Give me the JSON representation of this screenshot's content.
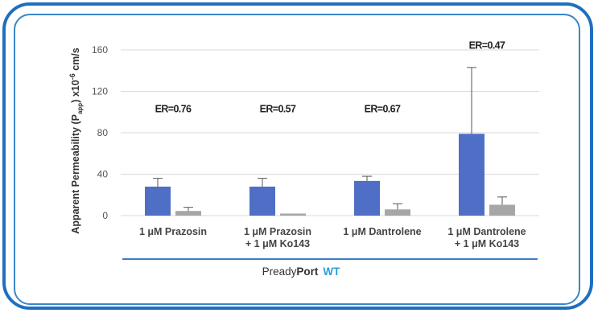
{
  "chart_data": {
    "type": "bar",
    "ylabel": "Apparent Permeability (P_app) x10⁻⁶ cm/s",
    "ylabel_parts": {
      "pre": "Apparent Permeability (P",
      "sub": "app",
      "mid": ") x10",
      "sup": "-6",
      "post": " cm/s"
    },
    "ylim": [
      0,
      160
    ],
    "yticks": [
      "0",
      "40",
      "80",
      "120",
      "160"
    ],
    "ytick_values": [
      0,
      40,
      80,
      120,
      160
    ],
    "grid": true,
    "categories": [
      [
        "1 μM Prazosin"
      ],
      [
        "1 μM Prazosin",
        "+ 1 μM Ko143"
      ],
      [
        "1 μM Dantrolene"
      ],
      [
        "1 μM Dantrolene",
        "+ 1 μM Ko143"
      ]
    ],
    "series": [
      {
        "values": [
          28,
          28,
          33.5,
          79
        ],
        "errors": [
          8,
          8,
          4.5,
          64
        ],
        "color": "#4f6fc6"
      },
      {
        "values": [
          4.5,
          2,
          6,
          10.5
        ],
        "errors": [
          3.5,
          0,
          5.5,
          7.5
        ],
        "color": "#a6a6a6"
      }
    ],
    "annotations": [
      "ER=0.76",
      "ER=0.57",
      "ER=0.67",
      "ER=0.47"
    ],
    "annotation_values": [
      100,
      100,
      100,
      161
    ]
  },
  "footer": {
    "prefix": "Pready",
    "brand": "Port",
    "wt": "WT"
  },
  "colors": {
    "outer_border": "#1f6fc0",
    "inner_border": "#3a86c8",
    "axis_line": "#3b7cc4",
    "wt": "#2a9fd8"
  }
}
